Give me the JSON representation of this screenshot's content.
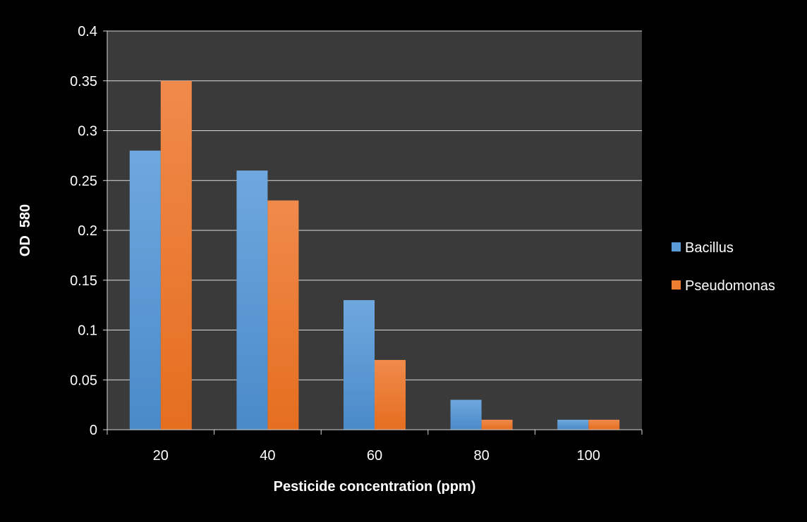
{
  "chart_data": {
    "type": "bar",
    "categories": [
      "20",
      "40",
      "60",
      "80",
      "100"
    ],
    "series": [
      {
        "name": "Bacillus",
        "values": [
          0.28,
          0.26,
          0.13,
          0.03,
          0.01
        ]
      },
      {
        "name": "Pseudomonas",
        "values": [
          0.35,
          0.23,
          0.07,
          0.01,
          0.01
        ]
      }
    ],
    "title": "",
    "xlabel": "Pesticide concentration (ppm)",
    "ylabel": "OD  580",
    "ylim": [
      0,
      0.4
    ],
    "yticks": [
      "0",
      "0.05",
      "0.1",
      "0.15",
      "0.2",
      "0.25",
      "0.3",
      "0.35",
      "0.4"
    ],
    "grid": true,
    "legend": "right",
    "colors": {
      "page_background": "#000000",
      "plot_background": "#3A3A3A",
      "grid": "#D9D9D9",
      "Bacillus": "#5B9BD5",
      "Pseudomonas": "#ED7D31"
    }
  }
}
